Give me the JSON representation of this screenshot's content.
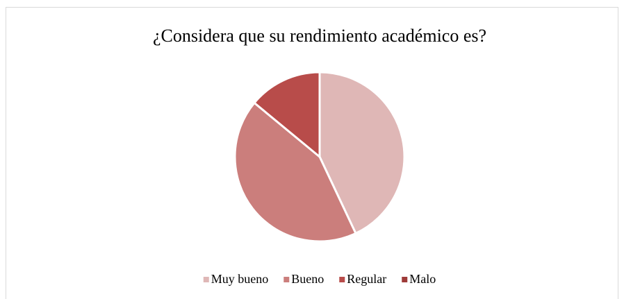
{
  "chart_data": {
    "type": "pie",
    "title": "¿Considera que su rendimiento académico es?",
    "categories": [
      "Muy bueno",
      "Bueno",
      "Regular",
      "Malo"
    ],
    "values": [
      43,
      43,
      14,
      0
    ],
    "colors": [
      "#dfb7b6",
      "#cb7e7c",
      "#b84c4a",
      "#9e3b39"
    ],
    "legend": "bottom"
  }
}
